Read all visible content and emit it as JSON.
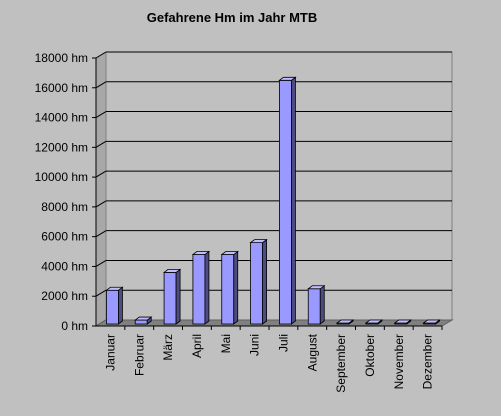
{
  "chart_data": {
    "type": "bar",
    "title": "Gefahrene Hm im Jahr MTB",
    "unit": "hm",
    "categories": [
      "Januar",
      "Februar",
      "März",
      "April",
      "Mai",
      "Juni",
      "Juli",
      "August",
      "September",
      "Oktober",
      "November",
      "Dezember"
    ],
    "values": [
      2400,
      400,
      3600,
      4800,
      4800,
      5600,
      16500,
      2500,
      0,
      0,
      0,
      0
    ],
    "ylim": [
      0,
      18000
    ],
    "yticks": [
      0,
      2000,
      4000,
      6000,
      8000,
      10000,
      12000,
      14000,
      16000,
      18000
    ],
    "ytick_labels": [
      "0 hm",
      "2000 hm",
      "4000 hm",
      "6000 hm",
      "8000 hm",
      "10000 hm",
      "12000 hm",
      "14000 hm",
      "16000 hm",
      "18000 hm"
    ],
    "grid": true,
    "colors": {
      "background": "#c0c0c0",
      "bar_front": "#9999ff",
      "bar_side": "#4c4c80",
      "bar_top": "#bfbfff",
      "floor": "#808080",
      "gridline": "#000000"
    }
  }
}
